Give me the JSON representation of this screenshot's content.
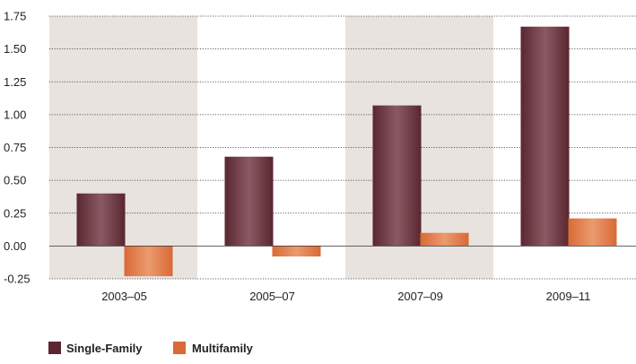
{
  "chart_data": {
    "type": "bar",
    "categories": [
      "2003–05",
      "2005–07",
      "2007–09",
      "2009–11"
    ],
    "series": [
      {
        "name": "Single-Family",
        "values": [
          0.4,
          0.68,
          1.07,
          1.67
        ]
      },
      {
        "name": "Multifamily",
        "values": [
          -0.23,
          -0.08,
          0.1,
          0.21
        ]
      }
    ],
    "yticks": [
      "1.75",
      "1.50",
      "1.25",
      "1.00",
      "0.75",
      "0.50",
      "0.25",
      "0.00",
      "-0.25"
    ],
    "ylim": [
      -0.25,
      1.75
    ],
    "title": "",
    "xlabel": "",
    "ylabel": "",
    "grid": true,
    "legend_position": "bottom-left",
    "shaded_categories": [
      0,
      2
    ],
    "colors": {
      "single_family": "#5a2630",
      "single_family_highlight": "#8a5a63",
      "multifamily": "#d96a36",
      "multifamily_highlight": "#eb9a6e",
      "shade": "#e8e3de",
      "grid": "#333333",
      "text": "#222222"
    }
  }
}
